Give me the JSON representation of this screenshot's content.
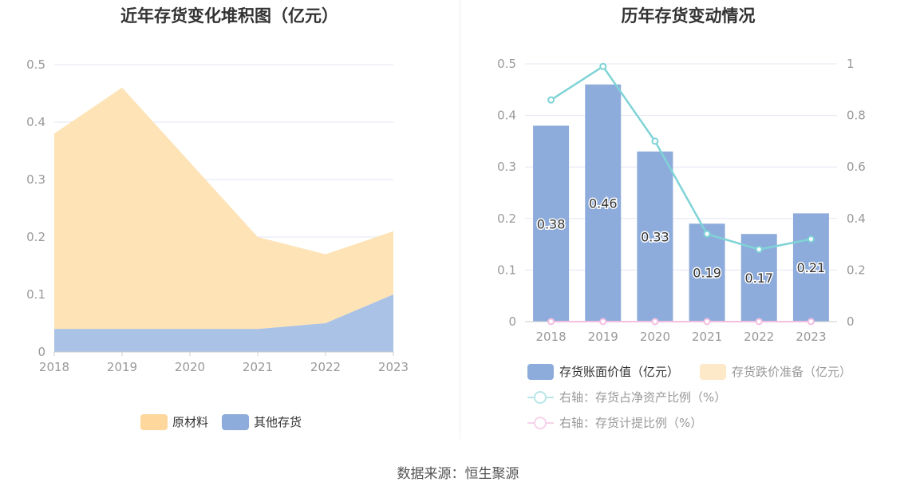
{
  "source": "数据来源：恒生聚源",
  "colors": {
    "raw_material": "#fde3b5",
    "other_inventory": "#a9c2e6",
    "bar": "#8eacdb",
    "impairment": "#fde8c8",
    "ratio_line": "#7fd3d6",
    "provision_line": "#f3bfe0",
    "grid": "#e3e7f3",
    "axis_text": "#999999"
  },
  "chart_data": [
    {
      "type": "area",
      "stacked": true,
      "title": "近年存货变化堆积图（亿元）",
      "categories": [
        "2018",
        "2019",
        "2020",
        "2021",
        "2022",
        "2023"
      ],
      "ylim": [
        0,
        0.5
      ],
      "yticks": [
        "0",
        "0.1",
        "0.2",
        "0.3",
        "0.4",
        "0.5"
      ],
      "grid": true,
      "legend_position": "bottom",
      "series": [
        {
          "name": "其他存货",
          "values": [
            0.04,
            0.04,
            0.04,
            0.04,
            0.05,
            0.1
          ]
        },
        {
          "name": "原材料",
          "values": [
            0.34,
            0.42,
            0.29,
            0.16,
            0.12,
            0.11
          ]
        }
      ],
      "legend": [
        "原材料",
        "其他存货"
      ]
    },
    {
      "type": "bar",
      "title": "历年存货变动情况",
      "categories": [
        "2018",
        "2019",
        "2020",
        "2021",
        "2022",
        "2023"
      ],
      "ylim": [
        0,
        0.5
      ],
      "yticks": [
        "0",
        "0.1",
        "0.2",
        "0.3",
        "0.4",
        "0.5"
      ],
      "y2lim": [
        0,
        1
      ],
      "y2ticks": [
        "0",
        "0.2",
        "0.4",
        "0.6",
        "0.8",
        "1"
      ],
      "grid": true,
      "legend_position": "bottom",
      "series": [
        {
          "name": "存货账面价值（亿元）",
          "type": "bar",
          "values": [
            0.38,
            0.46,
            0.33,
            0.19,
            0.17,
            0.21
          ],
          "labels": [
            "0.38",
            "0.46",
            "0.33",
            "0.19",
            "0.17",
            "0.21"
          ]
        },
        {
          "name": "存货跌价准备（亿元）",
          "type": "bar",
          "values": [
            0,
            0,
            0,
            0,
            0,
            0
          ]
        },
        {
          "name": "右轴：存货占净资产比例（%）",
          "type": "line",
          "axis": "right",
          "values": [
            0.86,
            0.99,
            0.7,
            0.34,
            0.28,
            0.32
          ]
        },
        {
          "name": "右轴：存货计提比例（%）",
          "type": "line",
          "axis": "right",
          "values": [
            0,
            0,
            0,
            0,
            0,
            0
          ]
        }
      ]
    }
  ]
}
